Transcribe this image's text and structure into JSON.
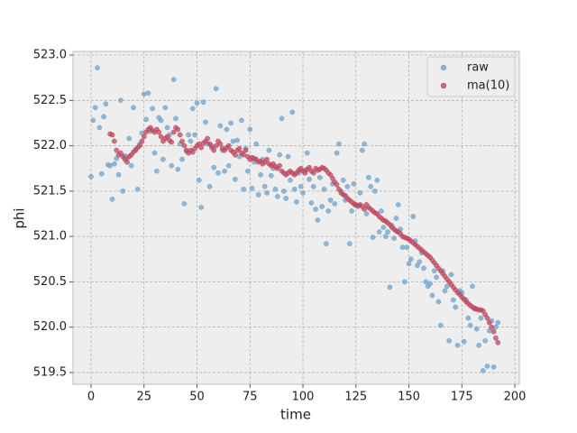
{
  "chart_data": {
    "type": "scatter",
    "xlabel": "time",
    "ylabel": "phi",
    "x": [
      0,
      1,
      2,
      3,
      4,
      5,
      6,
      7,
      8,
      9,
      10,
      11,
      12,
      13,
      14,
      15,
      16,
      17,
      18,
      19,
      20,
      21,
      22,
      23,
      24,
      25,
      26,
      27,
      28,
      29,
      30,
      31,
      32,
      33,
      34,
      35,
      36,
      37,
      38,
      39,
      40,
      41,
      42,
      43,
      44,
      45,
      46,
      47,
      48,
      49,
      50,
      51,
      52,
      53,
      54,
      55,
      56,
      57,
      58,
      59,
      60,
      61,
      62,
      63,
      64,
      65,
      66,
      67,
      68,
      69,
      70,
      71,
      72,
      73,
      74,
      75,
      76,
      77,
      78,
      79,
      80,
      81,
      82,
      83,
      84,
      85,
      86,
      87,
      88,
      89,
      90,
      91,
      92,
      93,
      94,
      95,
      96,
      97,
      98,
      99,
      100,
      101,
      102,
      103,
      104,
      105,
      106,
      107,
      108,
      109,
      110,
      111,
      112,
      113,
      114,
      115,
      116,
      117,
      118,
      119,
      120,
      121,
      122,
      123,
      124,
      125,
      126,
      127,
      128,
      129,
      130,
      131,
      132,
      133,
      134,
      135,
      136,
      137,
      138,
      139,
      140,
      141,
      142,
      143,
      144,
      145,
      146,
      147,
      148,
      149,
      150,
      151,
      152,
      153,
      154,
      155,
      156,
      157,
      158,
      159,
      160,
      161,
      162,
      163,
      164,
      165,
      166,
      167,
      168,
      169,
      170,
      171,
      172,
      173,
      174,
      175,
      176,
      177,
      178,
      179,
      180,
      181,
      182,
      183,
      184,
      185,
      186,
      187,
      188,
      189,
      190,
      191,
      192
    ],
    "series": [
      {
        "name": "raw",
        "color": "#6fa3cb",
        "values": [
          521.66,
          522.28,
          522.42,
          522.86,
          522.2,
          521.69,
          522.32,
          522.46,
          521.79,
          521.78,
          521.41,
          521.8,
          521.86,
          521.68,
          522.5,
          521.5,
          521.89,
          521.86,
          522.08,
          521.78,
          522.42,
          521.96,
          521.52,
          522.02,
          522.14,
          522.57,
          522.29,
          522.58,
          522.16,
          522.41,
          521.92,
          521.72,
          522.31,
          522.28,
          521.85,
          522.42,
          522.2,
          522.12,
          521.78,
          522.73,
          522.3,
          521.74,
          522.02,
          521.85,
          521.36,
          521.94,
          522.12,
          522.05,
          522.41,
          522.12,
          522.47,
          521.62,
          521.32,
          522.48,
          522.26,
          522.02,
          521.55,
          522.0,
          521.76,
          522.63,
          521.7,
          522.22,
          521.95,
          521.72,
          522.18,
          521.78,
          522.25,
          522.05,
          521.63,
          522.06,
          521.88,
          522.28,
          521.52,
          521.97,
          521.72,
          522.18,
          521.53,
          521.82,
          522.02,
          521.46,
          521.68,
          521.85,
          521.55,
          521.48,
          521.95,
          521.67,
          521.75,
          521.52,
          521.44,
          521.9,
          522.3,
          521.5,
          521.42,
          521.88,
          521.62,
          522.37,
          521.52,
          521.38,
          521.7,
          521.55,
          521.48,
          521.73,
          521.92,
          521.63,
          521.37,
          521.55,
          521.3,
          521.18,
          521.65,
          521.33,
          521.52,
          520.92,
          521.28,
          521.4,
          521.58,
          521.36,
          521.92,
          522.02,
          521.5,
          521.62,
          521.4,
          521.55,
          520.92,
          521.28,
          521.58,
          521.34,
          521.33,
          521.48,
          521.95,
          522.02,
          521.25,
          521.65,
          521.55,
          520.99,
          521.5,
          521.62,
          521.05,
          521.28,
          521.1,
          521.0,
          521.05,
          520.44,
          521.12,
          520.98,
          521.2,
          521.35,
          521.08,
          520.88,
          520.5,
          520.88,
          520.7,
          520.75,
          521.22,
          520.95,
          520.68,
          520.72,
          520.82,
          520.65,
          520.5,
          520.45,
          520.48,
          520.35,
          520.62,
          520.55,
          520.28,
          520.02,
          520.62,
          520.4,
          520.45,
          519.85,
          520.58,
          520.3,
          520.22,
          519.8,
          520.4,
          520.38,
          519.84,
          520.3,
          520.1,
          520.02,
          520.45,
          520.2,
          519.98,
          519.8,
          520.1,
          519.52,
          519.85,
          519.57,
          519.96,
          520.07,
          519.56,
          520.0,
          520.05
        ]
      },
      {
        "name": "ma(10)",
        "color": "#c0455f",
        "values": [
          null,
          null,
          null,
          null,
          null,
          null,
          null,
          null,
          null,
          522.13,
          522.12,
          522.05,
          521.95,
          521.9,
          521.92,
          521.88,
          521.85,
          521.82,
          521.88,
          521.9,
          521.93,
          521.95,
          521.98,
          522.0,
          522.05,
          522.1,
          522.15,
          522.18,
          522.2,
          522.17,
          522.15,
          522.18,
          522.15,
          522.1,
          522.05,
          522.08,
          522.1,
          522.06,
          522.04,
          522.15,
          522.2,
          522.18,
          522.12,
          522.05,
          522.0,
          521.95,
          521.92,
          521.95,
          521.93,
          521.97,
          522.0,
          522.02,
          521.98,
          522.03,
          522.05,
          522.08,
          522.02,
          521.98,
          521.95,
          522.0,
          522.05,
          522.02,
          521.97,
          521.95,
          521.98,
          522.0,
          521.95,
          521.93,
          521.9,
          521.95,
          521.97,
          521.92,
          521.9,
          521.95,
          521.88,
          521.85,
          521.87,
          521.86,
          521.85,
          521.82,
          521.83,
          521.8,
          521.82,
          521.85,
          521.8,
          521.78,
          521.8,
          521.77,
          521.75,
          521.78,
          521.72,
          521.7,
          521.68,
          521.7,
          521.72,
          521.7,
          521.68,
          521.7,
          521.73,
          521.75,
          521.72,
          521.7,
          521.74,
          521.76,
          521.72,
          521.7,
          521.75,
          521.73,
          521.74,
          521.76,
          521.75,
          521.73,
          521.7,
          521.68,
          521.64,
          521.6,
          521.57,
          521.52,
          521.48,
          521.46,
          521.45,
          521.42,
          521.4,
          521.38,
          521.36,
          521.35,
          521.34,
          521.35,
          521.33,
          521.3,
          521.35,
          521.32,
          521.3,
          521.28,
          521.26,
          521.25,
          521.22,
          521.2,
          521.18,
          521.17,
          521.15,
          521.13,
          521.1,
          521.08,
          521.06,
          521.05,
          521.03,
          521.0,
          520.99,
          520.98,
          520.97,
          520.95,
          520.93,
          520.91,
          520.89,
          520.87,
          520.85,
          520.83,
          520.81,
          520.79,
          520.77,
          520.74,
          520.71,
          520.68,
          520.65,
          520.62,
          520.59,
          520.56,
          520.53,
          520.5,
          520.47,
          520.44,
          520.41,
          520.38,
          520.36,
          520.33,
          520.31,
          520.28,
          520.26,
          520.24,
          520.22,
          520.21,
          520.2,
          520.19,
          520.19,
          520.18,
          520.14,
          520.1,
          520.05,
          520.0,
          519.95,
          519.88,
          519.83
        ]
      }
    ],
    "xlim": [
      -8.5,
      202.1
    ],
    "ylim": [
      519.37,
      523.04
    ],
    "xticks": [
      0,
      25,
      50,
      75,
      100,
      125,
      150,
      175,
      200
    ],
    "yticks": [
      519.5,
      {
        "value": 520.0,
        "label": "520.0"
      },
      520.5,
      {
        "value": 521.0,
        "label": "521.0"
      },
      521.5,
      {
        "value": 522.0,
        "label": "522.0"
      },
      522.5,
      {
        "value": 523.0,
        "label": "523.0"
      }
    ],
    "grid": true,
    "legend": "upper right"
  }
}
